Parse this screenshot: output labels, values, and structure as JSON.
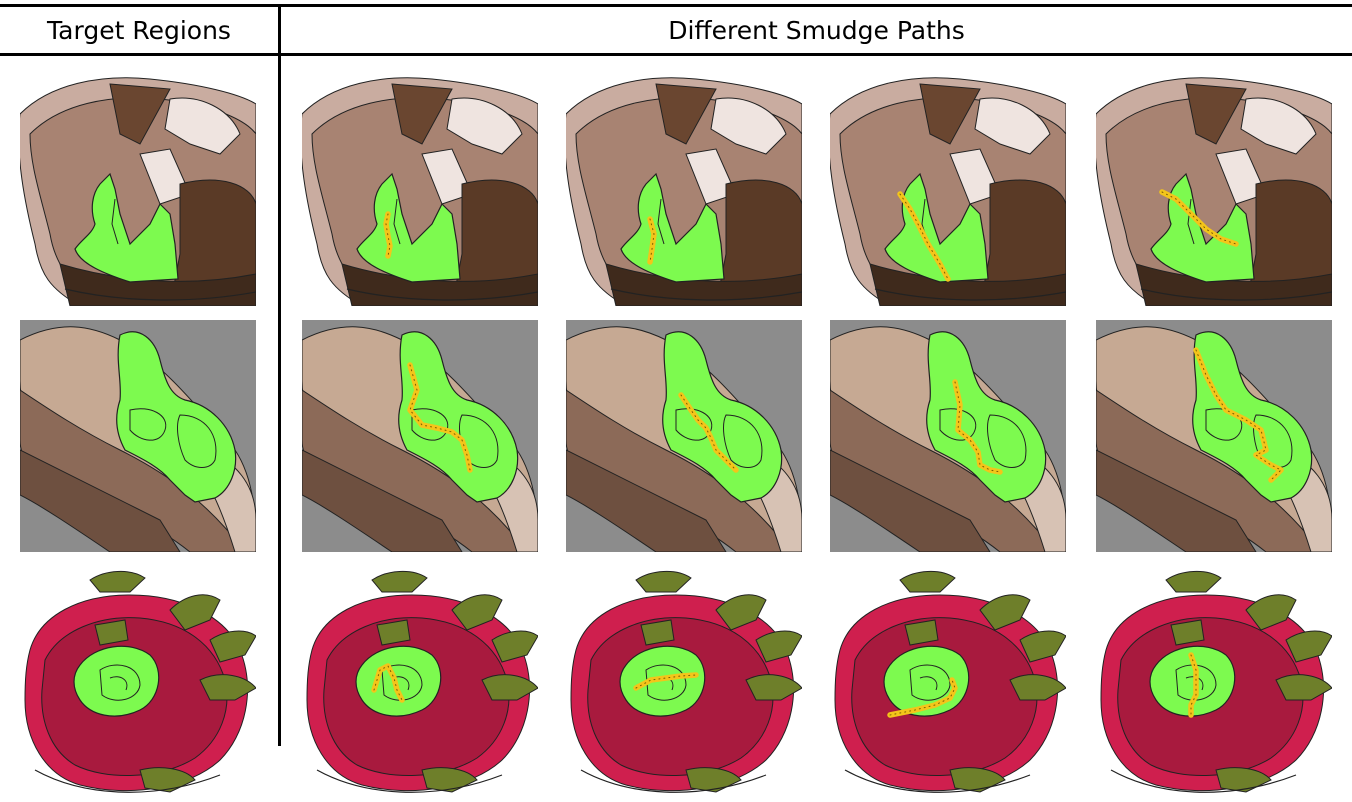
{
  "header": {
    "left_title": "Target Regions",
    "right_title": "Different Smudge Paths"
  },
  "rows": [
    {
      "subject": "brown-terrain",
      "background": "#ffffff"
    },
    {
      "subject": "gray-terrain",
      "background": "#8c8c8c"
    },
    {
      "subject": "dragonfruit",
      "background": "#ffffff"
    }
  ],
  "colors": {
    "target_region": "#7dfa4f",
    "smudge_path": "#f3c51a",
    "grid_line": "#000000"
  },
  "columns": [
    "target",
    "smudge-path-1",
    "smudge-path-2",
    "smudge-path-3",
    "smudge-path-4"
  ]
}
